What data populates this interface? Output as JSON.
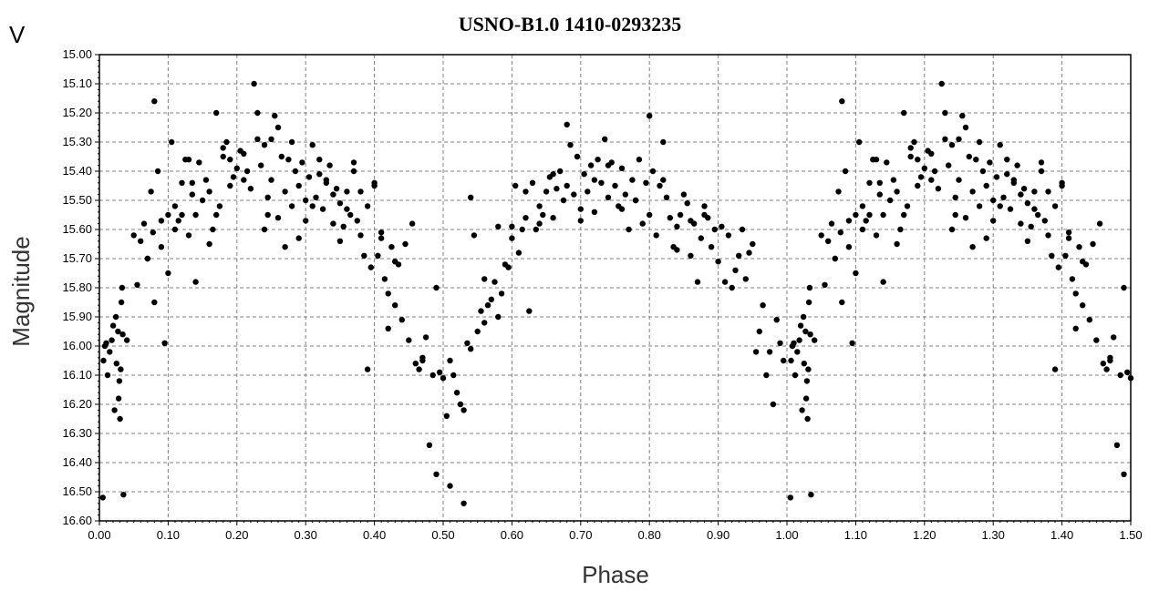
{
  "chart_data": {
    "type": "scatter",
    "title": "USNO-B1.0 1410-0293235",
    "band_label": "V",
    "xlabel": "Phase",
    "ylabel": "Magnitude",
    "xlim": [
      0.0,
      1.5
    ],
    "ylim": [
      15.0,
      16.6
    ],
    "y_inverted": true,
    "grid": true,
    "marker_color": "#000000",
    "x_ticks": [
      "0.00",
      "0.10",
      "0.20",
      "0.30",
      "0.40",
      "0.50",
      "0.60",
      "0.70",
      "0.80",
      "0.90",
      "1.00",
      "1.10",
      "1.20",
      "1.30",
      "1.40",
      "1.50"
    ],
    "y_ticks": [
      "15.00",
      "15.10",
      "15.20",
      "15.30",
      "15.40",
      "15.50",
      "15.60",
      "15.70",
      "15.80",
      "15.90",
      "16.00",
      "16.10",
      "16.20",
      "16.30",
      "16.40",
      "16.50",
      "16.60"
    ],
    "series": [
      {
        "x": [
          0.005,
          0.008,
          0.012,
          0.015,
          0.018,
          0.022,
          0.025,
          0.028,
          0.03,
          0.032,
          0.035,
          0.01,
          0.02,
          0.033,
          0.006,
          0.027,
          0.031,
          0.024,
          0.029,
          0.034,
          0.055,
          0.06,
          0.065,
          0.07,
          0.075,
          0.078,
          0.08,
          0.085,
          0.09,
          0.095,
          0.1,
          0.105,
          0.11,
          0.115,
          0.12,
          0.125,
          0.13,
          0.135,
          0.14,
          0.145,
          0.15,
          0.155,
          0.16,
          0.165,
          0.17,
          0.175,
          0.18,
          0.185,
          0.19,
          0.195,
          0.2,
          0.205,
          0.21,
          0.215,
          0.22,
          0.225,
          0.23,
          0.235,
          0.24,
          0.245,
          0.25,
          0.255,
          0.26,
          0.265,
          0.27,
          0.275,
          0.28,
          0.285,
          0.29,
          0.295,
          0.3,
          0.305,
          0.31,
          0.315,
          0.32,
          0.325,
          0.33,
          0.335,
          0.34,
          0.345,
          0.35,
          0.355,
          0.36,
          0.365,
          0.37,
          0.375,
          0.38,
          0.385,
          0.39,
          0.395,
          0.4,
          0.405,
          0.41,
          0.415,
          0.42,
          0.425,
          0.43,
          0.435,
          0.44,
          0.445,
          0.45,
          0.455,
          0.46,
          0.465,
          0.47,
          0.475,
          0.48,
          0.485,
          0.49,
          0.495,
          0.5,
          0.505,
          0.51,
          0.515,
          0.52,
          0.525,
          0.53,
          0.535,
          0.54,
          0.545,
          0.55,
          0.555,
          0.56,
          0.565,
          0.57,
          0.575,
          0.58,
          0.585,
          0.59,
          0.595,
          0.6,
          0.605,
          0.61,
          0.615,
          0.62,
          0.625,
          0.63,
          0.635,
          0.64,
          0.645,
          0.65,
          0.655,
          0.66,
          0.665,
          0.67,
          0.675,
          0.68,
          0.685,
          0.69,
          0.695,
          0.7,
          0.705,
          0.71,
          0.715,
          0.72,
          0.725,
          0.73,
          0.735,
          0.74,
          0.745,
          0.75,
          0.755,
          0.76,
          0.765,
          0.77,
          0.775,
          0.78,
          0.785,
          0.79,
          0.795,
          0.8,
          0.805,
          0.81,
          0.815,
          0.82,
          0.825,
          0.83,
          0.835,
          0.84,
          0.845,
          0.85,
          0.855,
          0.86,
          0.865,
          0.87,
          0.875,
          0.88,
          0.885,
          0.89,
          0.895,
          0.9,
          0.905,
          0.91,
          0.915,
          0.92,
          0.925,
          0.93,
          0.935,
          0.94,
          0.945,
          0.95,
          0.955,
          0.96,
          0.965,
          0.97,
          0.975,
          0.98,
          0.985,
          0.99,
          0.995,
          0.13,
          0.18,
          0.23,
          0.26,
          0.28,
          0.31,
          0.34,
          0.12,
          0.16,
          0.24,
          0.29,
          0.33,
          0.37,
          0.41,
          0.56,
          0.62,
          0.66,
          0.7,
          0.74,
          0.78,
          0.82,
          0.86,
          0.68,
          0.72,
          0.76,
          0.8,
          0.84,
          0.88,
          0.64,
          0.6,
          0.58,
          0.54,
          0.53,
          0.51,
          0.49,
          0.47,
          0.43,
          0.42,
          0.4,
          0.39,
          0.11,
          0.14,
          0.17,
          0.19,
          0.21,
          0.25,
          0.27,
          0.3,
          0.32,
          0.35,
          0.36,
          0.38,
          0.08,
          0.09,
          0.1,
          0.05,
          0.04,
          0.07,
          0.135,
          0.245
        ],
        "y": [
          16.52,
          16.0,
          16.1,
          16.02,
          15.98,
          16.22,
          16.06,
          16.18,
          16.25,
          15.85,
          16.51,
          15.99,
          15.93,
          15.8,
          16.05,
          15.95,
          16.08,
          15.9,
          16.12,
          15.96,
          15.79,
          15.64,
          15.58,
          15.7,
          15.47,
          15.61,
          15.16,
          15.4,
          15.66,
          15.99,
          15.75,
          15.3,
          15.52,
          15.57,
          15.44,
          15.36,
          15.62,
          15.48,
          15.55,
          15.37,
          15.5,
          15.43,
          15.47,
          15.6,
          15.2,
          15.52,
          15.35,
          15.3,
          15.45,
          15.42,
          15.39,
          15.33,
          15.34,
          15.4,
          15.46,
          15.1,
          15.29,
          15.38,
          15.31,
          15.49,
          15.43,
          15.21,
          15.56,
          15.35,
          15.47,
          15.36,
          15.52,
          15.4,
          15.45,
          15.37,
          15.5,
          15.42,
          15.31,
          15.49,
          15.36,
          15.53,
          15.43,
          15.38,
          15.58,
          15.46,
          15.51,
          15.59,
          15.47,
          15.55,
          15.37,
          15.57,
          15.62,
          15.69,
          15.52,
          15.73,
          15.45,
          15.69,
          15.63,
          15.77,
          15.82,
          15.66,
          15.86,
          15.72,
          15.91,
          15.65,
          15.98,
          15.58,
          16.06,
          16.08,
          16.05,
          15.97,
          16.34,
          16.1,
          15.8,
          16.09,
          16.11,
          16.24,
          16.05,
          16.1,
          16.16,
          16.2,
          16.22,
          15.99,
          16.01,
          15.62,
          15.95,
          15.88,
          15.92,
          15.86,
          15.84,
          15.78,
          15.9,
          15.82,
          15.72,
          15.73,
          15.59,
          15.45,
          15.68,
          15.6,
          15.47,
          15.88,
          15.44,
          15.6,
          15.52,
          15.55,
          15.47,
          15.42,
          15.56,
          15.46,
          15.4,
          15.5,
          15.45,
          15.31,
          15.48,
          15.35,
          15.53,
          15.41,
          15.47,
          15.38,
          15.54,
          15.36,
          15.44,
          15.29,
          15.49,
          15.37,
          15.45,
          15.52,
          15.39,
          15.48,
          15.6,
          15.43,
          15.5,
          15.36,
          15.58,
          15.44,
          15.55,
          15.4,
          15.62,
          15.45,
          15.3,
          15.49,
          15.56,
          15.66,
          15.59,
          15.55,
          15.48,
          15.51,
          15.57,
          15.58,
          15.78,
          15.63,
          15.55,
          15.56,
          15.66,
          15.6,
          15.71,
          15.59,
          15.78,
          15.62,
          15.8,
          15.74,
          15.69,
          15.6,
          15.77,
          15.68,
          15.65,
          16.02,
          15.95,
          15.86,
          16.1,
          16.02,
          16.2,
          15.91,
          15.99,
          16.05,
          15.36,
          15.32,
          15.2,
          15.25,
          15.3,
          15.52,
          15.48,
          15.55,
          15.65,
          15.6,
          15.63,
          15.44,
          15.4,
          15.61,
          15.77,
          15.56,
          15.41,
          15.57,
          15.38,
          15.5,
          15.43,
          15.69,
          15.24,
          15.43,
          15.53,
          15.21,
          15.67,
          15.52,
          15.58,
          15.63,
          15.59,
          15.49,
          16.54,
          16.48,
          16.44,
          16.04,
          15.71,
          15.94,
          15.44,
          16.08,
          15.6,
          15.78,
          15.55,
          15.36,
          15.43,
          15.29,
          15.66,
          15.57,
          15.41,
          15.64,
          15.53,
          15.47,
          15.85,
          15.57,
          15.55,
          15.62,
          15.98,
          15.7,
          15.44,
          15.55
        ]
      }
    ]
  }
}
